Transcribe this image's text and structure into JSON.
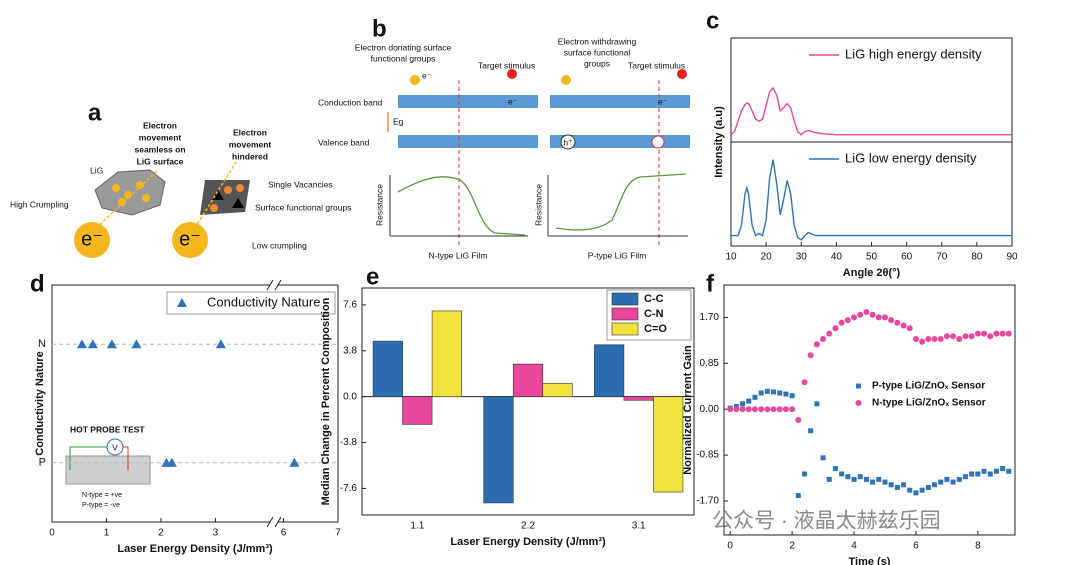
{
  "chart_data": [
    {
      "type": "line",
      "label": "c",
      "xlabel": "Angle 2θ(°)",
      "ylabel": "Intensity (a.u)",
      "xlim": [
        10,
        90
      ],
      "xticks": [
        10,
        20,
        30,
        40,
        50,
        60,
        70,
        80,
        90
      ],
      "ylim": [
        0,
        2
      ],
      "x": [
        10,
        11,
        12,
        13,
        14,
        14.5,
        15,
        16,
        17,
        18,
        19,
        20,
        21,
        22,
        23,
        24,
        25,
        26,
        27,
        28,
        29,
        30,
        31,
        32,
        34,
        36,
        40,
        90
      ],
      "series": [
        {
          "name": "LiG high energy density",
          "color": "#e4499a",
          "values": [
            1.07,
            1.1,
            1.2,
            1.3,
            1.36,
            1.375,
            1.37,
            1.3,
            1.22,
            1.2,
            1.22,
            1.35,
            1.48,
            1.52,
            1.45,
            1.3,
            1.33,
            1.37,
            1.33,
            1.2,
            1.1,
            1.07,
            1.1,
            1.11,
            1.09,
            1.08,
            1.07,
            1.07
          ]
        },
        {
          "name": "LiG low energy density",
          "color": "#2f73b8",
          "values": [
            0.1,
            0.1,
            0.1,
            0.2,
            0.5,
            0.56,
            0.5,
            0.2,
            0.1,
            0.12,
            0.1,
            0.25,
            0.65,
            0.83,
            0.6,
            0.3,
            0.45,
            0.63,
            0.5,
            0.2,
            0.08,
            0.06,
            0.1,
            0.13,
            0.1,
            0.1,
            0.1,
            0.1
          ]
        }
      ]
    },
    {
      "type": "scatter",
      "label": "d",
      "xlabel": "Laser Energy Density (J/mm³)",
      "ylabel": "Conductivity Nature",
      "xlim": [
        0,
        7
      ],
      "xticks": [
        0,
        1,
        2,
        3,
        6,
        7
      ],
      "xbreak": [
        4,
        5.9
      ],
      "categories": [
        "P",
        "N"
      ],
      "grid": true,
      "legend": "top-right",
      "series": [
        {
          "name": "Conductivity Nature",
          "color": "#2f73b8",
          "values": [
            0.55,
            0.75,
            1.1,
            1.55,
            3.1,
            2.1,
            2.2,
            6.2
          ],
          "y": [
            "N",
            "N",
            "N",
            "N",
            "N",
            "P",
            "P",
            "P"
          ]
        }
      ]
    },
    {
      "type": "bar",
      "label": "e",
      "xlabel": "Laser Energy Density (J/mm³)",
      "ylabel": "Median Change in Percent Composition",
      "categories": [
        "1.1",
        "2.2",
        "3.1"
      ],
      "ylim": [
        -9.8,
        9.0
      ],
      "yticks": [
        -7.6,
        -3.8,
        {
          "value": 0,
          "label": "0.0"
        },
        3.8,
        7.6
      ],
      "legend": "top-right",
      "series": [
        {
          "name": "C-C",
          "color": "#2a6db0",
          "values": [
            4.6,
            -8.8,
            4.3
          ]
        },
        {
          "name": "C-N",
          "color": "#e8479b",
          "values": [
            -2.3,
            2.7,
            -0.3
          ]
        },
        {
          "name": "C=O",
          "color": "#f2e23c",
          "values": [
            7.1,
            1.1,
            -7.9
          ]
        }
      ]
    },
    {
      "type": "scatter",
      "label": "f",
      "xlabel": "Time (s)",
      "ylabel": "Normalized Current Gain",
      "xlim": [
        -0.2,
        9.2
      ],
      "xticks": [
        0,
        2,
        4,
        6,
        8
      ],
      "ylim": [
        -2.33,
        2.3
      ],
      "yticks": [
        {
          "value": -1.7,
          "label": "-1.70"
        },
        {
          "value": -0.85,
          "label": "-0.85"
        },
        {
          "value": 0,
          "label": "0.00"
        },
        {
          "value": 0.85,
          "label": "0.85"
        },
        {
          "value": 1.7,
          "label": "1.70"
        }
      ],
      "legend": "center-right",
      "x": [
        0,
        0.2,
        0.4,
        0.6,
        0.8,
        1.0,
        1.2,
        1.4,
        1.6,
        1.8,
        2.0,
        2.2,
        2.4,
        2.6,
        2.8,
        3.0,
        3.2,
        3.4,
        3.6,
        3.8,
        4.0,
        4.2,
        4.4,
        4.6,
        4.8,
        5.0,
        5.2,
        5.4,
        5.6,
        5.8,
        6.0,
        6.2,
        6.4,
        6.6,
        6.8,
        7.0,
        7.2,
        7.4,
        7.6,
        7.8,
        8.0,
        8.2,
        8.4,
        8.6,
        8.8,
        9.0
      ],
      "series": [
        {
          "name": "P-type LiG/ZnOₓ Sensor",
          "color": "#2f73b8",
          "marker": "square",
          "values": [
            0.02,
            0.05,
            0.1,
            0.15,
            0.22,
            0.3,
            0.33,
            0.32,
            0.3,
            0.28,
            0.25,
            -1.6,
            -1.2,
            -0.4,
            0.1,
            -0.9,
            -1.3,
            -1.1,
            -1.2,
            -1.25,
            -1.3,
            -1.25,
            -1.3,
            -1.35,
            -1.3,
            -1.35,
            -1.4,
            -1.45,
            -1.4,
            -1.5,
            -1.55,
            -1.5,
            -1.45,
            -1.4,
            -1.35,
            -1.3,
            -1.35,
            -1.3,
            -1.25,
            -1.2,
            -1.2,
            -1.15,
            -1.2,
            -1.15,
            -1.1,
            -1.15
          ]
        },
        {
          "name": "N-type LiG/ZnOₓ Sensor",
          "color": "#e8479b",
          "marker": "circle",
          "values": [
            0.0,
            0.0,
            0.0,
            0.0,
            0.0,
            0.0,
            0.0,
            0.0,
            0.0,
            0.0,
            0.0,
            -0.2,
            0.5,
            1.0,
            1.2,
            1.3,
            1.4,
            1.5,
            1.6,
            1.65,
            1.7,
            1.75,
            1.8,
            1.75,
            1.7,
            1.7,
            1.65,
            1.6,
            1.55,
            1.5,
            1.3,
            1.25,
            1.3,
            1.3,
            1.3,
            1.35,
            1.35,
            1.3,
            1.35,
            1.35,
            1.4,
            1.4,
            1.35,
            1.4,
            1.4,
            1.4
          ]
        }
      ]
    }
  ],
  "diagrams": {
    "a": {
      "label": "a",
      "seamless": [
        "Electron",
        "movement",
        "seamless on",
        "LiG surface"
      ],
      "hindered": [
        "Electron",
        "movement",
        "hindered"
      ],
      "lig": "LiG",
      "high": "High Crumpling",
      "vacancies": "Single Vacancies",
      "groups": "Surface functional groups",
      "low": "Low crumpling",
      "electron": "e⁻"
    },
    "b": {
      "label": "b",
      "donating": [
        "Electron donating surface",
        "functional groups"
      ],
      "withdrawing": [
        "Electron withdrawing",
        "surface functional",
        "groups"
      ],
      "target": "Target stimulus",
      "conduction": "Conduction band",
      "valence": "Valence band",
      "gap": "Eg",
      "electron": "e⁻",
      "hole": "h⁺",
      "resistance": "Resistance",
      "ntype": "N-type LiG Film",
      "ptype": "P-type LiG Film"
    },
    "d_inset": {
      "title": "HOT PROBE TEST",
      "meter": "V",
      "n": "N-type = +ve",
      "p": "P-type = -ve"
    },
    "watermark": "公众号 · 液晶太赫兹乐园"
  }
}
